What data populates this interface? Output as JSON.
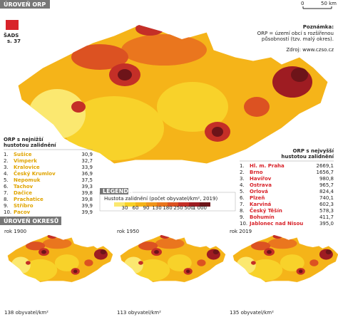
{
  "sections": {
    "orp": "ÚROVEŇ ORP",
    "okresy": "ÚROVEŇ OKRESŮ"
  },
  "logo": {
    "line1": "ŠADS",
    "line2": "s. 37"
  },
  "scale": {
    "zero": "0",
    "length": "50 km"
  },
  "note": {
    "title": "Poznámka:",
    "lines": [
      "ORP = území obcí s rozšířenou",
      "působností (tzv. malý okres)."
    ],
    "source": "Zdroj: www.czso.cz"
  },
  "lowest": {
    "title": [
      "ORP s nejnižší",
      "hustotou zalidnění"
    ],
    "rows": [
      [
        "1.",
        "Sušice",
        "30,9"
      ],
      [
        "2.",
        "Vimperk",
        "32,7"
      ],
      [
        "3.",
        "Kralovice",
        "33,9"
      ],
      [
        "4.",
        "Český Krumlov",
        "36,9"
      ],
      [
        "5.",
        "Nepomuk",
        "37,5"
      ],
      [
        "6.",
        "Tachov",
        "39,3"
      ],
      [
        "7.",
        "Dačice",
        "39,8"
      ],
      [
        "8.",
        "Prachatice",
        "39,8"
      ],
      [
        "9.",
        "Stříbro",
        "39,9"
      ],
      [
        "10.",
        "Pacov",
        "39,9"
      ]
    ]
  },
  "highest": {
    "title": [
      "ORP s nejvyšší",
      "hustotou zalidnění"
    ],
    "rows": [
      [
        "1.",
        "Hl. m. Praha",
        "2669,1"
      ],
      [
        "2.",
        "Brno",
        "1656,7"
      ],
      [
        "3.",
        "Havířov",
        "980,8"
      ],
      [
        "4.",
        "Ostrava",
        "965,7"
      ],
      [
        "5.",
        "Orlová",
        "824,4"
      ],
      [
        "6.",
        "Plzeň",
        "740,1"
      ],
      [
        "7.",
        "Karviná",
        "602,3"
      ],
      [
        "8.",
        "Český Těšín",
        "578,3"
      ],
      [
        "9.",
        "Bohumín",
        "411,7"
      ],
      [
        "10.",
        "Jablonec nad Nisou",
        "395,0"
      ]
    ]
  },
  "legend": {
    "heading": "LEGENDA",
    "title": "Hustota zalidnění (počet obyvatel/km², 2019)",
    "breaks": [
      "30",
      "60",
      "90",
      "130",
      "180",
      "250",
      "500",
      "1 000"
    ],
    "colors": [
      "#fbe870",
      "#f8d22a",
      "#f5b419",
      "#f0961c",
      "#ea761e",
      "#dc5222",
      "#c42f27",
      "#9e1c22",
      "#6d1419"
    ]
  },
  "small_maps": [
    {
      "title": "rok 1900",
      "caption": "138 obyvatel/km²"
    },
    {
      "title": "rok 1950",
      "caption": "113 obyvatel/km²"
    },
    {
      "title": "rok 2019",
      "caption": "135 obyvatel/km²"
    }
  ]
}
